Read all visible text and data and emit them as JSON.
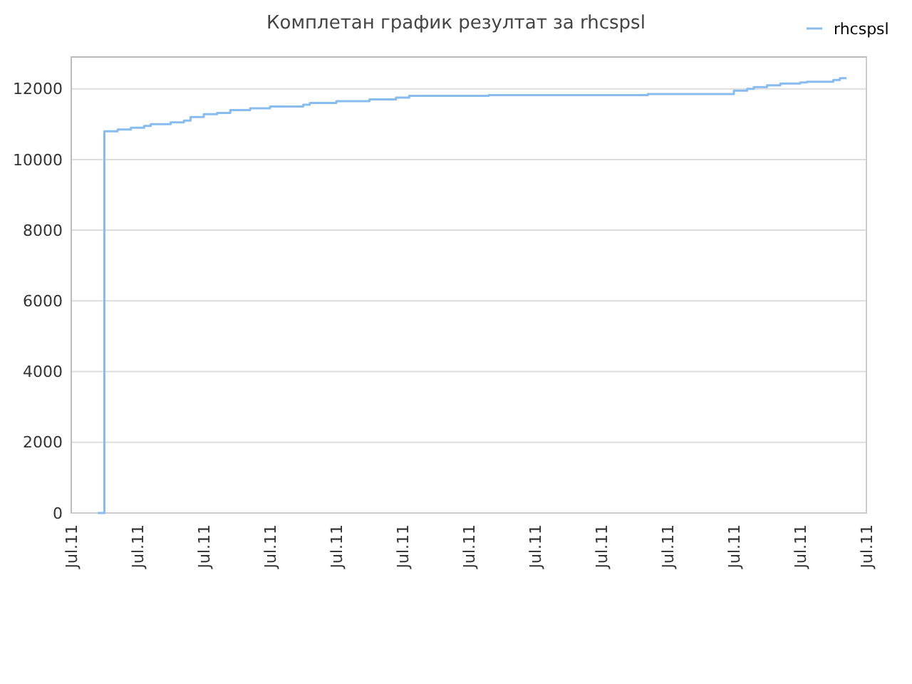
{
  "chart_data": {
    "type": "step",
    "title": "Комплетан график резултат за rhcspsl",
    "legend": "top right",
    "grid": "y",
    "categories": [
      "Jul.11",
      null,
      null,
      null,
      null,
      null,
      null,
      null,
      null,
      null,
      "Jul.11",
      null,
      null,
      null,
      null,
      null,
      null,
      null,
      null,
      null,
      "Jul.11",
      null,
      null,
      null,
      null,
      null,
      null,
      null,
      null,
      null,
      "Jul.11",
      null,
      null,
      null,
      null,
      null,
      null,
      null,
      null,
      null,
      "Jul.11",
      null,
      null,
      null,
      null,
      null,
      null,
      null,
      null,
      null,
      "Jul.11",
      null,
      null,
      null,
      null,
      null,
      null,
      null,
      null,
      null,
      "Jul.11",
      null,
      null,
      null,
      null,
      null,
      null,
      null,
      null,
      null,
      "Jul.11",
      null,
      null,
      null,
      null,
      null,
      null,
      null,
      null,
      null,
      "Jul.11",
      null,
      null,
      null,
      null,
      null,
      null,
      null,
      null,
      null,
      "Jul.11",
      null,
      null,
      null,
      null,
      null,
      null,
      null,
      null,
      null,
      "Jul.11",
      null,
      null,
      null,
      null,
      null,
      null,
      null,
      null,
      null,
      "Jul.11",
      null,
      null,
      null,
      null,
      null,
      null,
      null,
      null,
      null,
      "Jul.11"
    ],
    "ylim": [
      0,
      12900
    ],
    "yticks": [
      0,
      2000,
      4000,
      6000,
      8000,
      10000,
      12000
    ],
    "series": [
      {
        "name": "rhcspsl",
        "color": "#88bbee",
        "values": [
          null,
          null,
          null,
          null,
          0,
          10800,
          10800,
          10850,
          10850,
          10900,
          10900,
          10950,
          11000,
          11000,
          11000,
          11050,
          11050,
          11100,
          11200,
          11200,
          11280,
          11280,
          11320,
          11320,
          11400,
          11400,
          11400,
          11450,
          11450,
          11450,
          11500,
          11500,
          11500,
          11500,
          11500,
          11550,
          11600,
          11600,
          11600,
          11600,
          11650,
          11650,
          11650,
          11650,
          11650,
          11700,
          11700,
          11700,
          11700,
          11750,
          11750,
          11800,
          11800,
          11800,
          11800,
          11800,
          11800,
          11800,
          11800,
          11800,
          11800,
          11800,
          11800,
          11820,
          11820,
          11820,
          11820,
          11820,
          11820,
          11820,
          11820,
          11820,
          11820,
          11820,
          11820,
          11820,
          11820,
          11820,
          11820,
          11820,
          11820,
          11820,
          11820,
          11820,
          11820,
          11820,
          11820,
          11850,
          11850,
          11850,
          11850,
          11850,
          11850,
          11850,
          11850,
          11850,
          11850,
          11850,
          11850,
          11850,
          11950,
          11950,
          12000,
          12050,
          12050,
          12100,
          12100,
          12150,
          12150,
          12150,
          12180,
          12200,
          12200,
          12200,
          12200,
          12250,
          12300,
          12300,
          null,
          null,
          null
        ]
      }
    ]
  }
}
